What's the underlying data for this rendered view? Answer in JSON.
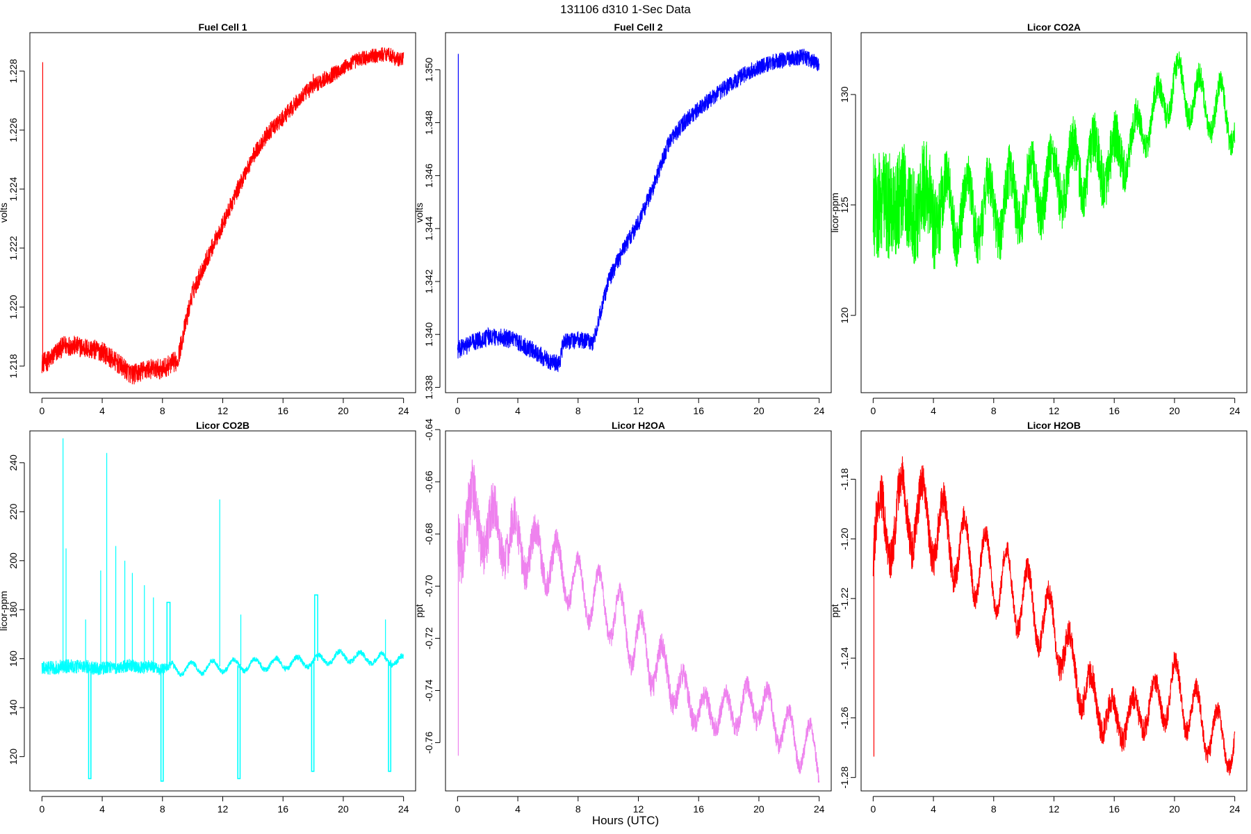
{
  "figure": {
    "title": "131106   d310   1-Sec Data",
    "xlabel": "Hours (UTC)"
  },
  "chart_data": [
    {
      "type": "line",
      "title": "Fuel Cell 1",
      "ylabel": "volts",
      "color": "#ff0000",
      "xlim": [
        -0.8,
        24.8
      ],
      "ylim": [
        1.2171,
        1.2293
      ],
      "x_ticks": [
        0,
        4,
        8,
        12,
        16,
        20,
        24
      ],
      "y_ticks": [
        1.218,
        1.22,
        1.222,
        1.224,
        1.226,
        1.228
      ],
      "y_decimals": 3,
      "base": [
        [
          0,
          1.2181
        ],
        [
          0.5,
          1.2182
        ],
        [
          1,
          1.2185
        ],
        [
          1.5,
          1.2187
        ],
        [
          2,
          1.2187
        ],
        [
          3,
          1.2186
        ],
        [
          4,
          1.2185
        ],
        [
          5,
          1.2181
        ],
        [
          6,
          1.2177
        ],
        [
          7,
          1.2179
        ],
        [
          8,
          1.2179
        ],
        [
          9,
          1.2182
        ],
        [
          10,
          1.2205
        ],
        [
          11,
          1.2217
        ],
        [
          12,
          1.2228
        ],
        [
          13,
          1.224
        ],
        [
          14,
          1.2251
        ],
        [
          15,
          1.2259
        ],
        [
          16,
          1.2264
        ],
        [
          17,
          1.227
        ],
        [
          18,
          1.2275
        ],
        [
          19,
          1.2278
        ],
        [
          20,
          1.2281
        ],
        [
          21,
          1.2284
        ],
        [
          22,
          1.2285
        ],
        [
          23,
          1.2286
        ],
        [
          23.5,
          1.2284
        ],
        [
          24,
          1.2284
        ]
      ],
      "noise_amp": [
        [
          0,
          0.00035
        ],
        [
          9,
          0.00035
        ],
        [
          12,
          0.0003
        ],
        [
          24,
          0.00025
        ]
      ],
      "spikes": [
        [
          0.05,
          1.2283
        ],
        [
          18,
          1.2279
        ]
      ]
    },
    {
      "type": "line",
      "title": "Fuel Cell 2",
      "ylabel": "volts",
      "color": "#0000ff",
      "xlim": [
        -0.8,
        24.8
      ],
      "ylim": [
        1.3378,
        1.3514
      ],
      "x_ticks": [
        0,
        4,
        8,
        12,
        16,
        20,
        24
      ],
      "y_ticks": [
        1.338,
        1.34,
        1.342,
        1.344,
        1.346,
        1.348,
        1.35
      ],
      "y_decimals": 3,
      "base": [
        [
          0,
          1.3394
        ],
        [
          1,
          1.3397
        ],
        [
          2,
          1.3399
        ],
        [
          3,
          1.3399
        ],
        [
          4,
          1.3397
        ],
        [
          5,
          1.3394
        ],
        [
          6,
          1.339
        ],
        [
          6.8,
          1.3389
        ],
        [
          7,
          1.3397
        ],
        [
          8,
          1.3398
        ],
        [
          9,
          1.3397
        ],
        [
          10,
          1.342
        ],
        [
          11,
          1.3432
        ],
        [
          12,
          1.3442
        ],
        [
          13,
          1.3456
        ],
        [
          14,
          1.3472
        ],
        [
          15,
          1.348
        ],
        [
          16,
          1.3485
        ],
        [
          17,
          1.349
        ],
        [
          18,
          1.3494
        ],
        [
          19,
          1.3498
        ],
        [
          20,
          1.3501
        ],
        [
          21,
          1.3503
        ],
        [
          22,
          1.3504
        ],
        [
          23,
          1.3505
        ],
        [
          24,
          1.3502
        ]
      ],
      "noise_amp": [
        [
          0,
          0.00035
        ],
        [
          24,
          0.0003
        ]
      ],
      "spikes": [
        [
          0.05,
          1.3506
        ]
      ]
    },
    {
      "type": "line",
      "title": "Licor CO2A",
      "ylabel": "licor-ppm",
      "color": "#00ff00",
      "xlim": [
        -0.8,
        24.8
      ],
      "ylim": [
        116.5,
        132.8
      ],
      "x_ticks": [
        0,
        4,
        8,
        12,
        16,
        20,
        24
      ],
      "y_ticks": [
        120,
        125,
        130
      ],
      "y_decimals": 0,
      "base": [
        [
          0,
          125
        ],
        [
          2,
          125
        ],
        [
          4,
          125
        ],
        [
          6,
          124.8
        ],
        [
          8,
          124.8
        ],
        [
          10,
          125.5
        ],
        [
          12,
          126.2
        ],
        [
          14,
          126.8
        ],
        [
          16,
          127
        ],
        [
          18,
          128.5
        ],
        [
          20,
          130.5
        ],
        [
          22,
          129.5
        ],
        [
          24,
          129
        ]
      ],
      "noise_amp": [
        [
          0,
          2.5
        ],
        [
          4,
          2.2
        ],
        [
          5,
          1.2
        ],
        [
          16,
          1.2
        ],
        [
          18,
          0.6
        ],
        [
          24,
          0.6
        ]
      ],
      "wave_amp": [
        [
          0,
          0
        ],
        [
          3,
          0.6
        ],
        [
          5,
          1.5
        ],
        [
          12,
          1.3
        ],
        [
          18,
          1.0
        ],
        [
          24,
          1.3
        ]
      ],
      "wave_period": 1.4
    },
    {
      "type": "line",
      "title": "Licor CO2B",
      "ylabel": "licor-ppm",
      "color": "#00ffff",
      "xlim": [
        -0.8,
        24.8
      ],
      "ylim": [
        106,
        253
      ],
      "x_ticks": [
        0,
        4,
        8,
        12,
        16,
        20,
        24
      ],
      "y_ticks": [
        120,
        140,
        160,
        180,
        200,
        220,
        240
      ],
      "y_decimals": 0,
      "base": [
        [
          0,
          156
        ],
        [
          2,
          157
        ],
        [
          4,
          156
        ],
        [
          6,
          157
        ],
        [
          8,
          156
        ],
        [
          10,
          156
        ],
        [
          12,
          157
        ],
        [
          16,
          158
        ],
        [
          18,
          159
        ],
        [
          20,
          161
        ],
        [
          22,
          160
        ],
        [
          24,
          159
        ]
      ],
      "noise_amp": [
        [
          0,
          3
        ],
        [
          8,
          2.5
        ],
        [
          9,
          1
        ],
        [
          24,
          1.2
        ]
      ],
      "wave_amp": [
        [
          0,
          0
        ],
        [
          8,
          0.5
        ],
        [
          9,
          2.5
        ],
        [
          24,
          2
        ]
      ],
      "wave_period": 1.4,
      "spikes": [
        [
          1.4,
          250
        ],
        [
          1.6,
          205
        ],
        [
          2.9,
          176
        ],
        [
          4.3,
          244
        ],
        [
          4.9,
          206
        ],
        [
          3.9,
          196
        ],
        [
          5.5,
          200
        ],
        [
          6,
          195
        ],
        [
          6.8,
          190
        ],
        [
          7.4,
          185
        ],
        [
          11.8,
          225
        ],
        [
          13.2,
          178
        ],
        [
          22.8,
          176
        ]
      ],
      "dips": [
        [
          3.1,
          111
        ],
        [
          7.9,
          110
        ],
        [
          13.0,
          111
        ],
        [
          17.9,
          114
        ],
        [
          23.0,
          114
        ]
      ],
      "plateaus": [
        [
          8.3,
          8.5,
          183
        ],
        [
          18.1,
          18.3,
          186
        ]
      ]
    },
    {
      "type": "line",
      "title": "Licor H2OA",
      "ylabel": "ppt",
      "color": "#ee82ee",
      "xlim": [
        -0.8,
        24.8
      ],
      "ylim": [
        -0.7785,
        -0.6405
      ],
      "x_ticks": [
        0,
        4,
        8,
        12,
        16,
        20,
        24
      ],
      "y_ticks": [
        -0.76,
        -0.74,
        -0.72,
        -0.7,
        -0.68,
        -0.66,
        -0.64
      ],
      "y_decimals": 2,
      "base": [
        [
          0,
          -0.68
        ],
        [
          1,
          -0.672
        ],
        [
          2,
          -0.678
        ],
        [
          4,
          -0.684
        ],
        [
          6,
          -0.69
        ],
        [
          8,
          -0.7
        ],
        [
          10,
          -0.708
        ],
        [
          12,
          -0.722
        ],
        [
          14,
          -0.735
        ],
        [
          16,
          -0.748
        ],
        [
          18,
          -0.748
        ],
        [
          20,
          -0.744
        ],
        [
          22,
          -0.757
        ],
        [
          24,
          -0.765
        ]
      ],
      "noise_amp": [
        [
          0,
          0.012
        ],
        [
          4,
          0.008
        ],
        [
          8,
          0.003
        ],
        [
          14,
          0.005
        ],
        [
          18,
          0.004
        ],
        [
          24,
          0.003
        ]
      ],
      "wave_amp": [
        [
          0,
          0.01
        ],
        [
          6,
          0.01
        ],
        [
          12,
          0.012
        ],
        [
          16,
          0.006
        ],
        [
          24,
          0.01
        ]
      ],
      "wave_period": 1.4,
      "spikes": [
        [
          0.05,
          -0.765
        ]
      ]
    },
    {
      "type": "line",
      "title": "Licor H2OB",
      "ylabel": "ppt",
      "color": "#ff0000",
      "xlim": [
        -0.8,
        24.8
      ],
      "ylim": [
        -1.2845,
        -1.1638
      ],
      "x_ticks": [
        0,
        4,
        8,
        12,
        16,
        20,
        24
      ],
      "y_ticks": [
        -1.28,
        -1.26,
        -1.24,
        -1.22,
        -1.2,
        -1.18
      ],
      "y_decimals": 2,
      "base": [
        [
          0,
          -1.2
        ],
        [
          2,
          -1.19
        ],
        [
          4,
          -1.195
        ],
        [
          6,
          -1.205
        ],
        [
          8,
          -1.212
        ],
        [
          10,
          -1.22
        ],
        [
          12,
          -1.23
        ],
        [
          14,
          -1.25
        ],
        [
          16,
          -1.262
        ],
        [
          18,
          -1.258
        ],
        [
          20,
          -1.25
        ],
        [
          22,
          -1.263
        ],
        [
          24,
          -1.27
        ]
      ],
      "noise_amp": [
        [
          0,
          0.008
        ],
        [
          4,
          0.006
        ],
        [
          8,
          0.003
        ],
        [
          14,
          0.005
        ],
        [
          18,
          0.004
        ],
        [
          24,
          0.003
        ]
      ],
      "wave_amp": [
        [
          0,
          0.012
        ],
        [
          10,
          0.012
        ],
        [
          14,
          0.008
        ],
        [
          18,
          0.006
        ],
        [
          20,
          0.01
        ],
        [
          24,
          0.008
        ]
      ],
      "wave_period": 1.4,
      "spikes": [
        [
          0.05,
          -1.273
        ]
      ]
    }
  ]
}
